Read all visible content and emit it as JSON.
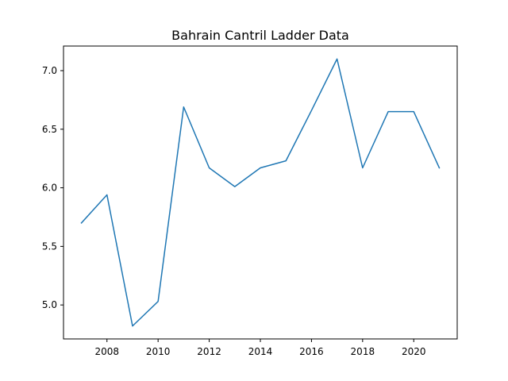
{
  "chart_data": {
    "type": "line",
    "title": "Bahrain Cantril Ladder Data",
    "xlabel": "",
    "ylabel": "",
    "x": [
      2007,
      2008,
      2009,
      2010,
      2011,
      2012,
      2013,
      2014,
      2015,
      2016,
      2017,
      2018,
      2019,
      2020,
      2021
    ],
    "series": [
      {
        "values": [
          5.7,
          5.94,
          4.82,
          5.03,
          6.69,
          6.17,
          6.01,
          6.17,
          6.23,
          6.66,
          7.1,
          6.17,
          6.65,
          6.65,
          6.17
        ],
        "color": "#1f77b4"
      }
    ],
    "xlim": [
      2006.3,
      2021.7
    ],
    "ylim": [
      4.71,
      7.21
    ],
    "xticks": [
      2008,
      2010,
      2012,
      2014,
      2016,
      2018,
      2020
    ],
    "yticks": [
      5.0,
      5.5,
      6.0,
      6.5,
      7.0
    ],
    "xtick_labels": [
      "2008",
      "2010",
      "2012",
      "2014",
      "2016",
      "2018",
      "2020"
    ],
    "ytick_labels": [
      "5.0",
      "5.5",
      "6.0",
      "6.5",
      "7.0"
    ],
    "grid": false,
    "legend": "none"
  }
}
